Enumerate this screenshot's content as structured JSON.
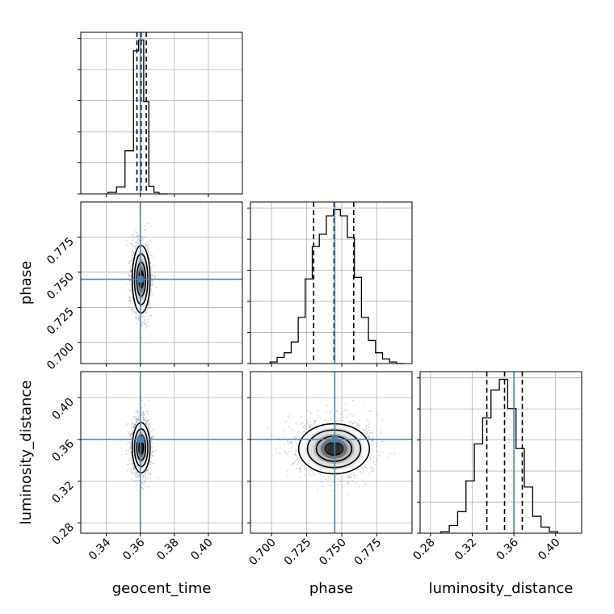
{
  "chart_data": {
    "type": "corner",
    "parameters": [
      "geocent_time",
      "phase",
      "luminosity_distance"
    ],
    "axis_labels": {
      "geocent_time": "geocent_time",
      "phase": "phase",
      "luminosity_distance": "luminosity_distance"
    },
    "ranges": {
      "geocent_time": [
        0.325,
        0.42
      ],
      "phase": [
        0.685,
        0.8
      ],
      "luminosity_distance": [
        0.27,
        0.425
      ]
    },
    "ticks": {
      "geocent_time": [
        "0.34",
        "0.36",
        "0.38",
        "0.40"
      ],
      "phase": [
        "0.700",
        "0.725",
        "0.750",
        "0.775"
      ],
      "luminosity_distance": [
        "0.28",
        "0.32",
        "0.36",
        "0.40"
      ]
    },
    "truths": {
      "geocent_time": 0.36,
      "phase": 0.745,
      "luminosity_distance": 0.36
    },
    "quantiles": {
      "geocent_time": [
        0.358,
        0.3605,
        0.3635
      ],
      "phase": [
        0.73,
        0.7445,
        0.7585
      ],
      "luminosity_distance": [
        0.334,
        0.351,
        0.368
      ]
    },
    "histograms": {
      "geocent_time": {
        "edges": [
          0.341,
          0.346,
          0.351,
          0.356,
          0.359,
          0.362,
          0.365,
          0.368,
          0.371,
          0.376
        ],
        "counts": [
          0.01,
          0.045,
          0.28,
          0.93,
          1.0,
          0.6,
          0.05,
          0.01,
          0.0
        ]
      },
      "phase": {
        "edges": [
          0.699,
          0.704,
          0.709,
          0.714,
          0.719,
          0.724,
          0.729,
          0.734,
          0.739,
          0.744,
          0.749,
          0.754,
          0.759,
          0.764,
          0.769,
          0.774,
          0.779,
          0.784,
          0.789,
          0.794
        ],
        "counts": [
          0.01,
          0.04,
          0.07,
          0.14,
          0.3,
          0.55,
          0.76,
          0.84,
          0.96,
          1.0,
          0.96,
          0.82,
          0.56,
          0.3,
          0.15,
          0.07,
          0.03,
          0.01,
          0.0
        ]
      },
      "luminosity_distance": {
        "edges": [
          0.29,
          0.298,
          0.306,
          0.314,
          0.322,
          0.33,
          0.338,
          0.346,
          0.354,
          0.362,
          0.37,
          0.378,
          0.386,
          0.394,
          0.402
        ],
        "counts": [
          0.01,
          0.05,
          0.14,
          0.34,
          0.58,
          0.75,
          0.93,
          1.0,
          0.81,
          0.55,
          0.3,
          0.11,
          0.04,
          0.01
        ]
      }
    },
    "joint_2d": [
      {
        "x": "geocent_time",
        "y": "phase",
        "mean": [
          0.3605,
          0.745
        ],
        "std": [
          0.0025,
          0.012
        ]
      },
      {
        "x": "geocent_time",
        "y": "luminosity_distance",
        "mean": [
          0.3605,
          0.352
        ],
        "std": [
          0.0025,
          0.012
        ]
      },
      {
        "x": "phase",
        "y": "luminosity_distance",
        "mean": [
          0.7445,
          0.351
        ],
        "std": [
          0.012,
          0.012
        ]
      }
    ],
    "colors": {
      "hist": "#000000",
      "truth": "#4682b4",
      "grid": "#b0b0b0"
    },
    "grid": true
  }
}
